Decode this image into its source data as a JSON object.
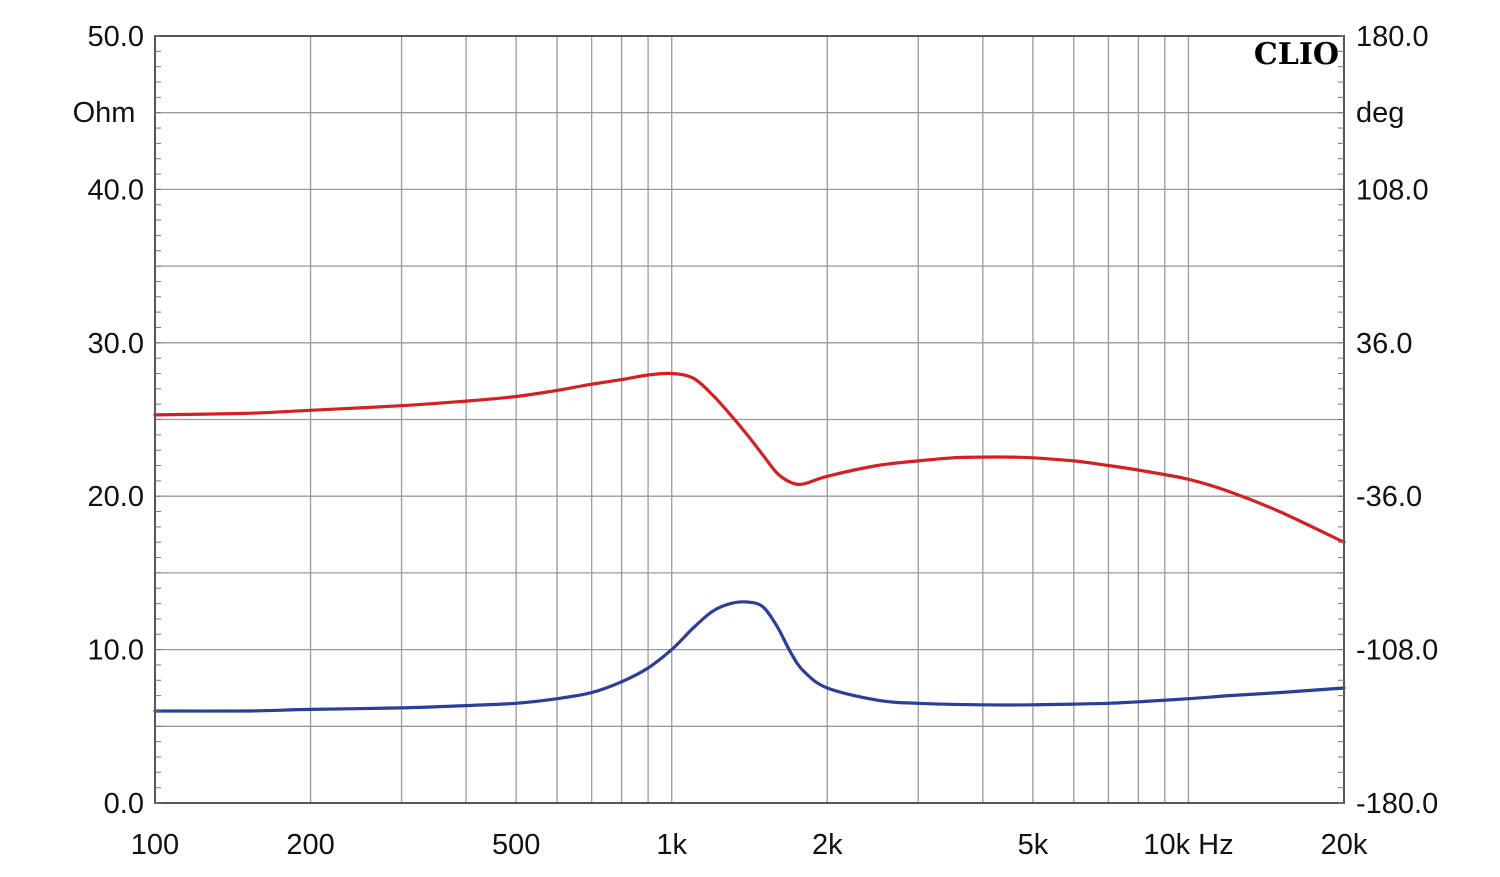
{
  "chart_data": {
    "type": "line",
    "brand": "CLIO",
    "x_scale": "log",
    "xlim": [
      100,
      20000
    ],
    "ylim_left": [
      0,
      50
    ],
    "ylim_right": [
      -180,
      180
    ],
    "left_unit": "Ohm",
    "right_unit": "deg",
    "x_ticks": [
      {
        "value": 100,
        "label": "100"
      },
      {
        "value": 200,
        "label": "200"
      },
      {
        "value": 500,
        "label": "500"
      },
      {
        "value": 1000,
        "label": "1k"
      },
      {
        "value": 2000,
        "label": "2k"
      },
      {
        "value": 5000,
        "label": "5k"
      },
      {
        "value": 10000,
        "label": "10k Hz"
      },
      {
        "value": 20000,
        "label": "20k"
      }
    ],
    "y_left_ticks": [
      {
        "value": 0,
        "label": "0.0"
      },
      {
        "value": 10,
        "label": "10.0"
      },
      {
        "value": 20,
        "label": "20.0"
      },
      {
        "value": 30,
        "label": "30.0"
      },
      {
        "value": 40,
        "label": "40.0"
      },
      {
        "value": 50,
        "label": "50.0"
      }
    ],
    "y_right_ticks": [
      {
        "value": -180,
        "label": "-180.0"
      },
      {
        "value": -108,
        "label": "-108.0"
      },
      {
        "value": -36,
        "label": "-36.0"
      },
      {
        "value": 36,
        "label": "36.0"
      },
      {
        "value": 108,
        "label": "108.0"
      },
      {
        "value": 180,
        "label": "180.0"
      }
    ],
    "grid": true,
    "series": [
      {
        "color": "#d42020",
        "axis": "left",
        "x": [
          100,
          150,
          200,
          300,
          400,
          500,
          600,
          700,
          800,
          900,
          1000,
          1100,
          1200,
          1300,
          1400,
          1500,
          1600,
          1700,
          1800,
          2000,
          2500,
          3000,
          3500,
          4000,
          4500,
          5000,
          6000,
          7000,
          8000,
          10000,
          12000,
          15000,
          20000
        ],
        "y": [
          25.3,
          25.4,
          25.6,
          25.9,
          26.2,
          26.5,
          26.9,
          27.3,
          27.6,
          27.9,
          28.0,
          27.7,
          26.6,
          25.3,
          24.0,
          22.7,
          21.5,
          20.9,
          20.8,
          21.3,
          22.0,
          22.3,
          22.5,
          22.55,
          22.55,
          22.5,
          22.3,
          22.0,
          21.7,
          21.1,
          20.3,
          19.0,
          17.0
        ]
      },
      {
        "color": "#2a3e9a",
        "axis": "left",
        "x": [
          100,
          150,
          200,
          300,
          400,
          500,
          600,
          700,
          800,
          900,
          1000,
          1100,
          1200,
          1300,
          1400,
          1500,
          1600,
          1700,
          1800,
          2000,
          2500,
          3000,
          4000,
          5000,
          6000,
          7000,
          8000,
          10000,
          12000,
          15000,
          20000
        ],
        "y": [
          6.0,
          6.0,
          6.1,
          6.2,
          6.35,
          6.5,
          6.8,
          7.2,
          7.9,
          8.8,
          10.0,
          11.4,
          12.5,
          13.0,
          13.1,
          12.8,
          11.5,
          9.8,
          8.6,
          7.5,
          6.7,
          6.5,
          6.4,
          6.4,
          6.45,
          6.5,
          6.6,
          6.8,
          7.0,
          7.2,
          7.5
        ]
      }
    ]
  }
}
